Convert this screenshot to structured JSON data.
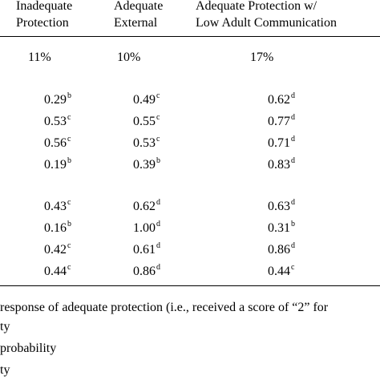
{
  "headers": {
    "col1": [
      "Inadequate",
      "Protection"
    ],
    "col2": [
      "Adequate",
      "External"
    ],
    "col3": [
      "Adequate Protection w/",
      "Low Adult Communication"
    ]
  },
  "percents": [
    "11%",
    "10%",
    "17%"
  ],
  "group1": [
    [
      {
        "v": "0.29",
        "s": "b"
      },
      {
        "v": "0.49",
        "s": "c"
      },
      {
        "v": "0.62",
        "s": "d"
      }
    ],
    [
      {
        "v": "0.53",
        "s": "c"
      },
      {
        "v": "0.55",
        "s": "c"
      },
      {
        "v": "0.77",
        "s": "d"
      }
    ],
    [
      {
        "v": "0.56",
        "s": "c"
      },
      {
        "v": "0.53",
        "s": "c"
      },
      {
        "v": "0.71",
        "s": "d"
      }
    ],
    [
      {
        "v": "0.19",
        "s": "b"
      },
      {
        "v": "0.39",
        "s": "b"
      },
      {
        "v": "0.83",
        "s": "d"
      }
    ]
  ],
  "group2": [
    [
      {
        "v": "0.43",
        "s": "c"
      },
      {
        "v": "0.62",
        "s": "d"
      },
      {
        "v": "0.63",
        "s": "d"
      }
    ],
    [
      {
        "v": "0.16",
        "s": "b"
      },
      {
        "v": "1.00",
        "s": "d"
      },
      {
        "v": "0.31",
        "s": "b"
      }
    ],
    [
      {
        "v": "0.42",
        "s": "c"
      },
      {
        "v": "0.61",
        "s": "d"
      },
      {
        "v": "0.86",
        "s": "d"
      }
    ],
    [
      {
        "v": "0.44",
        "s": "c"
      },
      {
        "v": "0.86",
        "s": "d"
      },
      {
        "v": "0.44",
        "s": "c"
      }
    ]
  ],
  "footnotes": [
    "response of adequate protection (i.e., received a score of “2” for",
    "ty",
    "probability",
    "ty"
  ]
}
